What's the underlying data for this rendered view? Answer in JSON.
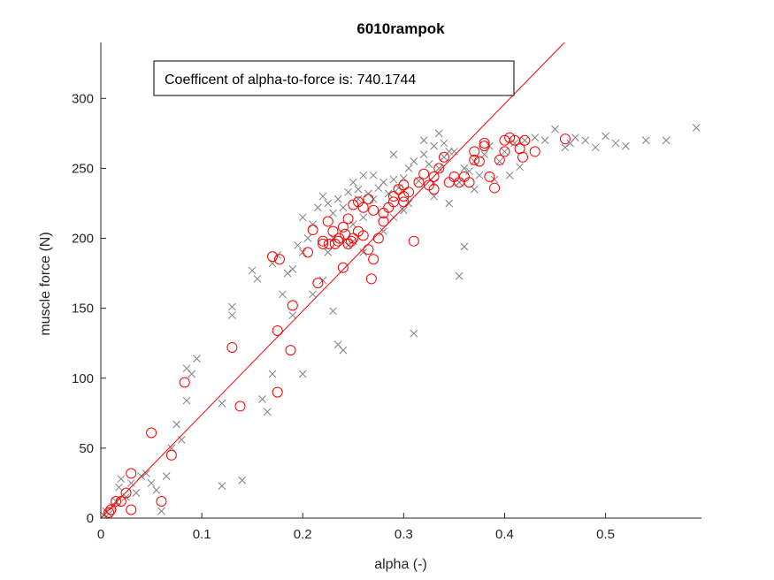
{
  "chart_data": {
    "type": "scatter",
    "title": "6010rampok",
    "xlabel": "alpha (-)",
    "ylabel": "muscle force (N)",
    "xlim": [
      0,
      0.595
    ],
    "ylim": [
      0,
      340
    ],
    "xticks": [
      0,
      0.1,
      0.2,
      0.3,
      0.4,
      0.5
    ],
    "xtick_labels": [
      "0",
      "0.1",
      "0.2",
      "0.3",
      "0.4",
      "0.5"
    ],
    "yticks": [
      0,
      50,
      100,
      150,
      200,
      250,
      300
    ],
    "ytick_labels": [
      "0",
      "50",
      "100",
      "150",
      "200",
      "250",
      "300"
    ],
    "grid": false,
    "annotation": "Coefficent of alpha-to-force is: 740.1744",
    "colors": {
      "cross": "#7f7f7f",
      "circle": "#ff0000",
      "line": "#ff0000",
      "axis": "#262626"
    },
    "fit_line": {
      "slope": 740.1744,
      "intercept": 0
    },
    "series": [
      {
        "marker": "x",
        "points": [
          [
            0.003,
            2
          ],
          [
            0.005,
            5
          ],
          [
            0.008,
            3
          ],
          [
            0.012,
            8
          ],
          [
            0.015,
            12
          ],
          [
            0.018,
            22
          ],
          [
            0.02,
            28
          ],
          [
            0.025,
            15
          ],
          [
            0.03,
            25
          ],
          [
            0.035,
            18
          ],
          [
            0.04,
            30
          ],
          [
            0.045,
            32
          ],
          [
            0.05,
            25
          ],
          [
            0.055,
            20
          ],
          [
            0.06,
            5
          ],
          [
            0.065,
            30
          ],
          [
            0.07,
            50
          ],
          [
            0.075,
            67
          ],
          [
            0.08,
            56
          ],
          [
            0.085,
            84
          ],
          [
            0.085,
            107
          ],
          [
            0.09,
            103
          ],
          [
            0.095,
            114
          ],
          [
            0.12,
            23
          ],
          [
            0.12,
            82
          ],
          [
            0.13,
            145
          ],
          [
            0.13,
            151
          ],
          [
            0.14,
            27
          ],
          [
            0.15,
            177
          ],
          [
            0.155,
            171
          ],
          [
            0.16,
            85
          ],
          [
            0.165,
            76
          ],
          [
            0.17,
            103
          ],
          [
            0.17,
            182
          ],
          [
            0.175,
            188
          ],
          [
            0.18,
            160
          ],
          [
            0.185,
            175
          ],
          [
            0.19,
            145
          ],
          [
            0.19,
            178
          ],
          [
            0.2,
            103
          ],
          [
            0.195,
            195
          ],
          [
            0.2,
            215
          ],
          [
            0.205,
            200
          ],
          [
            0.21,
            210
          ],
          [
            0.215,
            222
          ],
          [
            0.22,
            230
          ],
          [
            0.225,
            225
          ],
          [
            0.23,
            148
          ],
          [
            0.23,
            218
          ],
          [
            0.235,
            124
          ],
          [
            0.235,
            228
          ],
          [
            0.24,
            120
          ],
          [
            0.24,
            222
          ],
          [
            0.245,
            233
          ],
          [
            0.25,
            240
          ],
          [
            0.25,
            210
          ],
          [
            0.255,
            228
          ],
          [
            0.26,
            245
          ],
          [
            0.265,
            232
          ],
          [
            0.27,
            228
          ],
          [
            0.275,
            236
          ],
          [
            0.28,
            240
          ],
          [
            0.285,
            232
          ],
          [
            0.29,
            242
          ],
          [
            0.295,
            236
          ],
          [
            0.3,
            243
          ],
          [
            0.305,
            250
          ],
          [
            0.31,
            255
          ],
          [
            0.315,
            241
          ],
          [
            0.32,
            260
          ],
          [
            0.325,
            253
          ],
          [
            0.33,
            266
          ],
          [
            0.335,
            250
          ],
          [
            0.34,
            258
          ],
          [
            0.345,
            262
          ],
          [
            0.35,
            262
          ],
          [
            0.355,
            173
          ],
          [
            0.36,
            194
          ],
          [
            0.355,
            240
          ],
          [
            0.365,
            248
          ],
          [
            0.37,
            255
          ],
          [
            0.375,
            245
          ],
          [
            0.38,
            260
          ],
          [
            0.385,
            266
          ],
          [
            0.39,
            242
          ],
          [
            0.395,
            255
          ],
          [
            0.4,
            262
          ],
          [
            0.405,
            245
          ],
          [
            0.41,
            268
          ],
          [
            0.415,
            251
          ],
          [
            0.42,
            270
          ],
          [
            0.43,
            272
          ],
          [
            0.44,
            270
          ],
          [
            0.45,
            278
          ],
          [
            0.46,
            265
          ],
          [
            0.465,
            268
          ],
          [
            0.47,
            272
          ],
          [
            0.48,
            270
          ],
          [
            0.49,
            265
          ],
          [
            0.5,
            273
          ],
          [
            0.51,
            268
          ],
          [
            0.52,
            266
          ],
          [
            0.54,
            270
          ],
          [
            0.56,
            270
          ],
          [
            0.59,
            279
          ],
          [
            0.31,
            132
          ],
          [
            0.33,
            230
          ],
          [
            0.345,
            225
          ],
          [
            0.37,
            235
          ],
          [
            0.26,
            215
          ],
          [
            0.28,
            205
          ],
          [
            0.29,
            260
          ],
          [
            0.3,
            220
          ],
          [
            0.32,
            270
          ],
          [
            0.335,
            275
          ],
          [
            0.34,
            268
          ],
          [
            0.25,
            198
          ],
          [
            0.245,
            195
          ],
          [
            0.22,
            170
          ],
          [
            0.21,
            160
          ],
          [
            0.26,
            190
          ],
          [
            0.29,
            215
          ],
          [
            0.305,
            225
          ],
          [
            0.33,
            240
          ],
          [
            0.36,
            250
          ],
          [
            0.27,
            245
          ],
          [
            0.255,
            235
          ],
          [
            0.23,
            200
          ],
          [
            0.225,
            190
          ],
          [
            0.2,
            190
          ]
        ]
      },
      {
        "marker": "o",
        "points": [
          [
            0.008,
            4
          ],
          [
            0.01,
            6
          ],
          [
            0.015,
            12
          ],
          [
            0.02,
            12
          ],
          [
            0.025,
            18
          ],
          [
            0.03,
            6
          ],
          [
            0.03,
            32
          ],
          [
            0.05,
            61
          ],
          [
            0.06,
            12
          ],
          [
            0.07,
            45
          ],
          [
            0.083,
            97
          ],
          [
            0.13,
            122
          ],
          [
            0.138,
            80
          ],
          [
            0.17,
            187
          ],
          [
            0.175,
            134
          ],
          [
            0.175,
            90
          ],
          [
            0.177,
            185
          ],
          [
            0.188,
            120
          ],
          [
            0.19,
            152
          ],
          [
            0.205,
            190
          ],
          [
            0.21,
            206
          ],
          [
            0.215,
            168
          ],
          [
            0.22,
            198
          ],
          [
            0.225,
            212
          ],
          [
            0.23,
            205
          ],
          [
            0.235,
            198
          ],
          [
            0.24,
            179
          ],
          [
            0.245,
            196
          ],
          [
            0.25,
            200
          ],
          [
            0.255,
            205
          ],
          [
            0.26,
            222
          ],
          [
            0.265,
            192
          ],
          [
            0.268,
            171
          ],
          [
            0.27,
            185
          ],
          [
            0.275,
            200
          ],
          [
            0.28,
            218
          ],
          [
            0.285,
            222
          ],
          [
            0.29,
            230
          ],
          [
            0.295,
            235
          ],
          [
            0.3,
            226
          ],
          [
            0.305,
            233
          ],
          [
            0.31,
            198
          ],
          [
            0.315,
            240
          ],
          [
            0.32,
            246
          ],
          [
            0.325,
            238
          ],
          [
            0.33,
            244
          ],
          [
            0.335,
            250
          ],
          [
            0.34,
            258
          ],
          [
            0.345,
            240
          ],
          [
            0.35,
            244
          ],
          [
            0.355,
            240
          ],
          [
            0.36,
            244
          ],
          [
            0.365,
            240
          ],
          [
            0.37,
            262
          ],
          [
            0.375,
            255
          ],
          [
            0.38,
            268
          ],
          [
            0.385,
            244
          ],
          [
            0.39,
            236
          ],
          [
            0.395,
            256
          ],
          [
            0.4,
            262
          ],
          [
            0.405,
            272
          ],
          [
            0.41,
            270
          ],
          [
            0.415,
            264
          ],
          [
            0.42,
            270
          ],
          [
            0.43,
            262
          ],
          [
            0.46,
            271
          ],
          [
            0.24,
            208
          ],
          [
            0.245,
            214
          ],
          [
            0.25,
            224
          ],
          [
            0.255,
            226
          ],
          [
            0.265,
            228
          ],
          [
            0.27,
            220
          ],
          [
            0.28,
            212
          ],
          [
            0.29,
            226
          ],
          [
            0.3,
            230
          ],
          [
            0.33,
            235
          ],
          [
            0.37,
            256
          ],
          [
            0.38,
            266
          ],
          [
            0.4,
            270
          ],
          [
            0.418,
            258
          ],
          [
            0.22,
            196
          ],
          [
            0.226,
            196
          ],
          [
            0.232,
            196
          ],
          [
            0.236,
            200
          ],
          [
            0.242,
            203
          ],
          [
            0.248,
            198
          ],
          [
            0.26,
            202
          ],
          [
            0.3,
            238
          ]
        ]
      }
    ]
  }
}
